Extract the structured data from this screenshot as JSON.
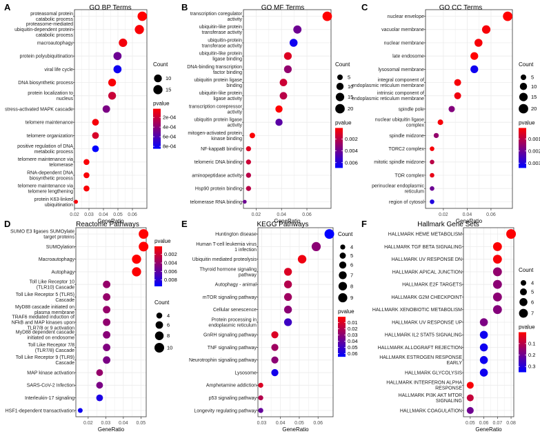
{
  "chart_data": [
    {
      "letter": "A",
      "title": "GO BP Terms",
      "type": "scatter",
      "xlabel": "GeneRatio",
      "xlim": [
        0.02,
        0.07
      ],
      "xticks": [
        0.02,
        0.03,
        0.04,
        0.05,
        0.06
      ],
      "count_legend": [
        10,
        15
      ],
      "count_range": [
        1,
        17
      ],
      "pvalue_range": [
        2e-05,
        0.00085
      ],
      "pvalue_ticks": [
        "2e-04",
        "4e-04",
        "6e-04",
        "8e-04"
      ],
      "pvalue_tick_values": [
        0.0002,
        0.0004,
        0.0006,
        0.0008
      ],
      "terms": [
        {
          "label": "proteasomal protein\ncatabolic process",
          "x": 0.0668,
          "count": 16,
          "p": 2e-05
        },
        {
          "label": "proteasome-mediated\nubiquitin-dependent protein\ncatabolic process",
          "x": 0.0648,
          "count": 15,
          "p": 4e-05
        },
        {
          "label": "macroautophagy",
          "x": 0.0535,
          "count": 12,
          "p": 6e-05
        },
        {
          "label": "protein polyubiquitination",
          "x": 0.0497,
          "count": 11,
          "p": 0.0005
        },
        {
          "label": "viral life cycle",
          "x": 0.0497,
          "count": 11,
          "p": 0.0008
        },
        {
          "label": "DNA biosynthetic process",
          "x": 0.046,
          "count": 10,
          "p": 4e-05
        },
        {
          "label": "protein localization to\nnucleus",
          "x": 0.046,
          "count": 10,
          "p": 0.0002
        },
        {
          "label": "stress-activated MAPK cascade",
          "x": 0.042,
          "count": 9,
          "p": 0.00045
        },
        {
          "label": "telomere maintenance",
          "x": 0.0345,
          "count": 7,
          "p": 5e-05
        },
        {
          "label": "telomere organization",
          "x": 0.0345,
          "count": 7,
          "p": 0.00015
        },
        {
          "label": "positive regulation of DNA\nmetabolic process",
          "x": 0.0345,
          "count": 7,
          "p": 0.00085
        },
        {
          "label": "telomere maintenance via\ntelomerase",
          "x": 0.0283,
          "count": 5,
          "p": 4e-05
        },
        {
          "label": "RNA-dependent DNA\nbiosynthetic process",
          "x": 0.0283,
          "count": 5,
          "p": 4e-05
        },
        {
          "label": "telomere maintenance via\ntelomere lengthening",
          "x": 0.0283,
          "count": 5,
          "p": 4e-05
        },
        {
          "label": "protein K63-linked\nubiquitination",
          "x": 0.021,
          "count": 2,
          "p": 5e-05
        }
      ]
    },
    {
      "letter": "B",
      "title": "GO MF Terms",
      "type": "scatter",
      "xlabel": "GeneRatio",
      "xlim": [
        0.01,
        0.079
      ],
      "xticks": [
        0.02,
        0.04,
        0.06
      ],
      "count_legend": [
        5,
        10,
        15,
        20
      ],
      "count_range": [
        1,
        21
      ],
      "pvalue_range": [
        0.0001,
        0.0069
      ],
      "pvalue_ticks": [
        "0.002",
        "0.004",
        "0.006"
      ],
      "pvalue_tick_values": [
        0.002,
        0.004,
        0.006
      ],
      "terms": [
        {
          "label": "transcription coregulator\nactivity",
          "x": 0.076,
          "count": 20,
          "p": 0.0001
        },
        {
          "label": "ubiquitin-like protein\ntransferase activity",
          "x": 0.0525,
          "count": 14,
          "p": 0.004
        },
        {
          "label": "ubiquitin-protein\ntransferase activity",
          "x": 0.0495,
          "count": 13,
          "p": 0.0065
        },
        {
          "label": "ubiquitin-like protein\nligase binding",
          "x": 0.045,
          "count": 12,
          "p": 0.001
        },
        {
          "label": "DNA-binding transcription\nfactor binding",
          "x": 0.045,
          "count": 12,
          "p": 0.003
        },
        {
          "label": "ubiquitin protein ligase\nbinding",
          "x": 0.0415,
          "count": 11,
          "p": 0.0015
        },
        {
          "label": "ubiquitin-like protein\nligase activity",
          "x": 0.0415,
          "count": 11,
          "p": 0.002
        },
        {
          "label": "transcription corepressor\nactivity",
          "x": 0.038,
          "count": 10,
          "p": 0.0001
        },
        {
          "label": "ubiquitin protein ligase\nactivity",
          "x": 0.038,
          "count": 10,
          "p": 0.0045
        },
        {
          "label": "mitogen-activated protein\nkinase binding",
          "x": 0.017,
          "count": 5,
          "p": 0.0002
        },
        {
          "label": "NF-kappaB binding",
          "x": 0.014,
          "count": 4,
          "p": 0.001
        },
        {
          "label": "telomeric DNA binding",
          "x": 0.014,
          "count": 4,
          "p": 0.0015
        },
        {
          "label": "aminopeptidase activity",
          "x": 0.014,
          "count": 4,
          "p": 0.002
        },
        {
          "label": "Hsp90 protein binding",
          "x": 0.014,
          "count": 4,
          "p": 0.002
        },
        {
          "label": "telomerase RNA binding",
          "x": 0.011,
          "count": 2,
          "p": 0.004
        }
      ]
    },
    {
      "letter": "C",
      "title": "GO CC Terms",
      "type": "scatter",
      "xlabel": "GeneRatio",
      "xlim": [
        0.005,
        0.078
      ],
      "xticks": [
        0.02,
        0.04,
        0.06
      ],
      "count_legend": [
        5,
        10,
        15,
        20
      ],
      "count_range": [
        1,
        21
      ],
      "pvalue_range": [
        0.0001,
        0.0034
      ],
      "pvalue_ticks": [
        "0.001",
        "0.002",
        "0.003"
      ],
      "pvalue_tick_values": [
        0.001,
        0.002,
        0.003
      ],
      "terms": [
        {
          "label": "nuclear envelope",
          "x": 0.074,
          "count": 20,
          "p": 0.0001
        },
        {
          "label": "vacuolar membrane",
          "x": 0.056,
          "count": 15,
          "p": 0.0002
        },
        {
          "label": "nuclear membrane",
          "x": 0.0495,
          "count": 13,
          "p": 0.0002
        },
        {
          "label": "late endosome",
          "x": 0.046,
          "count": 12,
          "p": 0.0001
        },
        {
          "label": "lysosomal membrane",
          "x": 0.046,
          "count": 12,
          "p": 0.0032
        },
        {
          "label": "integral component of\nendoplasmic reticulum membrane",
          "x": 0.032,
          "count": 9,
          "p": 0.0002
        },
        {
          "label": "intrinsic component of\nendoplasmic reticulum membrane",
          "x": 0.032,
          "count": 9,
          "p": 0.0003
        },
        {
          "label": "spindle pole",
          "x": 0.027,
          "count": 7,
          "p": 0.0017
        },
        {
          "label": "nuclear ubiquitin ligase\ncomplex",
          "x": 0.0175,
          "count": 5,
          "p": 0.0002
        },
        {
          "label": "spindle midzone",
          "x": 0.014,
          "count": 4,
          "p": 0.0015
        },
        {
          "label": "TORC2 complex",
          "x": 0.0105,
          "count": 3,
          "p": 0.0002
        },
        {
          "label": "mitotic spindle midzone",
          "x": 0.0105,
          "count": 3,
          "p": 0.001
        },
        {
          "label": "TOR complex",
          "x": 0.0105,
          "count": 3,
          "p": 0.0004
        },
        {
          "label": "perinuclear endoplasmic\nreticulum",
          "x": 0.0105,
          "count": 3,
          "p": 0.002
        },
        {
          "label": "region of cytosol",
          "x": 0.0105,
          "count": 3,
          "p": 0.003
        }
      ]
    },
    {
      "letter": "D",
      "title": "Reactome Pathways",
      "type": "scatter",
      "xlabel": "GeneRatio",
      "xlim": [
        0.013,
        0.053
      ],
      "xticks": [
        0.02,
        0.03,
        0.04,
        0.05
      ],
      "count_legend": [
        4,
        6,
        8,
        10
      ],
      "count_range": [
        2,
        10
      ],
      "pvalue_range": [
        0.0001,
        0.0095
      ],
      "pvalue_ticks": [
        "0.002",
        "0.004",
        "0.006",
        "0.008"
      ],
      "pvalue_tick_values": [
        0.002,
        0.004,
        0.006,
        0.008
      ],
      "terms": [
        {
          "label": "SUMO E3 ligases SUMOylate\ntarget proteins",
          "x": 0.0515,
          "count": 10,
          "p": 0.0001
        },
        {
          "label": "SUMOylation",
          "x": 0.0515,
          "count": 10,
          "p": 0.0001
        },
        {
          "label": "Macroautophagy",
          "x": 0.0475,
          "count": 9,
          "p": 0.0001
        },
        {
          "label": "Autophagy",
          "x": 0.0475,
          "count": 9,
          "p": 0.0002
        },
        {
          "label": "Toll Like Receptor 10\n(TLR10) Cascade",
          "x": 0.0305,
          "count": 6,
          "p": 0.004
        },
        {
          "label": "Toll Like Receptor 5 (TLR5)\nCascade",
          "x": 0.0305,
          "count": 6,
          "p": 0.004
        },
        {
          "label": "MyD88 cascade initiated on\nplasma membrane",
          "x": 0.0305,
          "count": 6,
          "p": 0.004
        },
        {
          "label": "TRAF6 mediated induction of\nNFkB and MAP kinases upon\nTLR7/8 or 9 activation",
          "x": 0.0305,
          "count": 6,
          "p": 0.0042
        },
        {
          "label": "MyD88 dependent cascade\ninitiated on endosome",
          "x": 0.0305,
          "count": 6,
          "p": 0.0045
        },
        {
          "label": "Toll Like Receptor 7/8\n(TLR7/8) Cascade",
          "x": 0.0305,
          "count": 6,
          "p": 0.0048
        },
        {
          "label": "Toll Like Receptor 9 (TLR9)\nCascade",
          "x": 0.0305,
          "count": 6,
          "p": 0.005
        },
        {
          "label": "MAP kinase activation",
          "x": 0.0265,
          "count": 5,
          "p": 0.004
        },
        {
          "label": "SARS-CoV-2 Infection",
          "x": 0.0265,
          "count": 5,
          "p": 0.005
        },
        {
          "label": "Interleukin-17 signaling",
          "x": 0.0265,
          "count": 5,
          "p": 0.0085
        },
        {
          "label": "HSF1-dependent transactivation",
          "x": 0.0155,
          "count": 3,
          "p": 0.009
        }
      ]
    },
    {
      "letter": "E",
      "title": "KEGG Pathways",
      "type": "scatter",
      "xlabel": "GeneRatio",
      "xlim": [
        0.028,
        0.068
      ],
      "xticks": [
        0.03,
        0.04,
        0.05,
        0.06
      ],
      "count_legend": [
        4,
        5,
        6,
        7,
        8,
        9
      ],
      "count_range": [
        3,
        10
      ],
      "pvalue_range": [
        0.001,
        0.065
      ],
      "pvalue_ticks": [
        "0.01",
        "0.02",
        "0.03",
        "0.04",
        "0.05",
        "0.06"
      ],
      "pvalue_tick_values": [
        0.01,
        0.02,
        0.03,
        0.04,
        0.05,
        0.06
      ],
      "terms": [
        {
          "label": "Huntington disease",
          "x": 0.066,
          "count": 10,
          "p": 0.065
        },
        {
          "label": "Human T-cell leukemia virus\n1 infection",
          "x": 0.059,
          "count": 9,
          "p": 0.03
        },
        {
          "label": "Ubiquitin mediated proteolysis",
          "x": 0.0515,
          "count": 8,
          "p": 0.005
        },
        {
          "label": "Thyroid hormone signaling\npathway",
          "x": 0.044,
          "count": 7,
          "p": 0.01
        },
        {
          "label": "Autophagy - animal",
          "x": 0.044,
          "count": 7,
          "p": 0.02
        },
        {
          "label": "mTOR signaling pathway",
          "x": 0.044,
          "count": 7,
          "p": 0.025
        },
        {
          "label": "Cellular senescence",
          "x": 0.044,
          "count": 7,
          "p": 0.03
        },
        {
          "label": "Protein processing in\nendoplasmic reticulum",
          "x": 0.044,
          "count": 7,
          "p": 0.05
        },
        {
          "label": "GnRH signaling pathway",
          "x": 0.037,
          "count": 6,
          "p": 0.01
        },
        {
          "label": "TNF signaling pathway",
          "x": 0.037,
          "count": 6,
          "p": 0.025
        },
        {
          "label": "Neurotrophin signaling pathway",
          "x": 0.037,
          "count": 6,
          "p": 0.03
        },
        {
          "label": "Lysosome",
          "x": 0.037,
          "count": 6,
          "p": 0.06
        },
        {
          "label": "Amphetamine addiction",
          "x": 0.0295,
          "count": 4,
          "p": 0.01
        },
        {
          "label": "p53 signaling pathway",
          "x": 0.0295,
          "count": 4,
          "p": 0.02
        },
        {
          "label": "Longevity regulating pathway",
          "x": 0.0295,
          "count": 4,
          "p": 0.04
        }
      ]
    },
    {
      "letter": "F",
      "title": "Hallmark Gene Sets",
      "type": "scatter",
      "xlabel": "GeneRatio",
      "xlim": [
        0.045,
        0.082
      ],
      "xticks": [
        0.05,
        0.06,
        0.07,
        0.08
      ],
      "count_legend": [
        4,
        5,
        6,
        7
      ],
      "count_range": [
        3,
        8
      ],
      "pvalue_range": [
        0.001,
        0.35
      ],
      "pvalue_ticks": [
        "0.1",
        "0.2",
        "0.3"
      ],
      "pvalue_tick_values": [
        0.1,
        0.2,
        0.3
      ],
      "terms": [
        {
          "label": "HALLMARK HEME METABOLISM",
          "x": 0.08,
          "count": 8,
          "p": 0.005
        },
        {
          "label": "HALLMARK TGF BETA SIGNALING",
          "x": 0.07,
          "count": 7,
          "p": 0.005
        },
        {
          "label": "HALLMARK UV RESPONSE DN",
          "x": 0.07,
          "count": 7,
          "p": 0.01
        },
        {
          "label": "HALLMARK APICAL JUNCTION",
          "x": 0.07,
          "count": 7,
          "p": 0.15
        },
        {
          "label": "HALLMARK E2F TARGETS",
          "x": 0.07,
          "count": 7,
          "p": 0.16
        },
        {
          "label": "HALLMARK G2M CHECKPOINT",
          "x": 0.07,
          "count": 7,
          "p": 0.16
        },
        {
          "label": "HALLMARK XENOBIOTIC METABOLISM",
          "x": 0.07,
          "count": 7,
          "p": 0.17
        },
        {
          "label": "HALLMARK UV RESPONSE UP",
          "x": 0.06,
          "count": 6,
          "p": 0.18
        },
        {
          "label": "HALLMARK IL2 STAT5 SIGNALING",
          "x": 0.06,
          "count": 6,
          "p": 0.33
        },
        {
          "label": "HALLMARK ALLOGRAFT REJECTION",
          "x": 0.06,
          "count": 6,
          "p": 0.33
        },
        {
          "label": "HALLMARK ESTROGEN RESPONSE\nEARLY",
          "x": 0.06,
          "count": 6,
          "p": 0.33
        },
        {
          "label": "HALLMARK GLYCOLYSIS",
          "x": 0.06,
          "count": 6,
          "p": 0.33
        },
        {
          "label": "HALLMARK INTERFERON ALPHA\nRESPONSE",
          "x": 0.05,
          "count": 5,
          "p": 0.01
        },
        {
          "label": "HALLMARK PI3K AKT MTOR\nSIGNALING",
          "x": 0.05,
          "count": 5,
          "p": 0.08
        },
        {
          "label": "HALLMARK COAGULATION",
          "x": 0.05,
          "count": 5,
          "p": 0.2
        }
      ]
    }
  ],
  "legend_titles": {
    "count": "Count",
    "pvalue": "pvalue"
  },
  "colors": {
    "high": "#ff0000",
    "low": "#0000ff",
    "grid": "#ebebeb",
    "frame": "#333333"
  }
}
